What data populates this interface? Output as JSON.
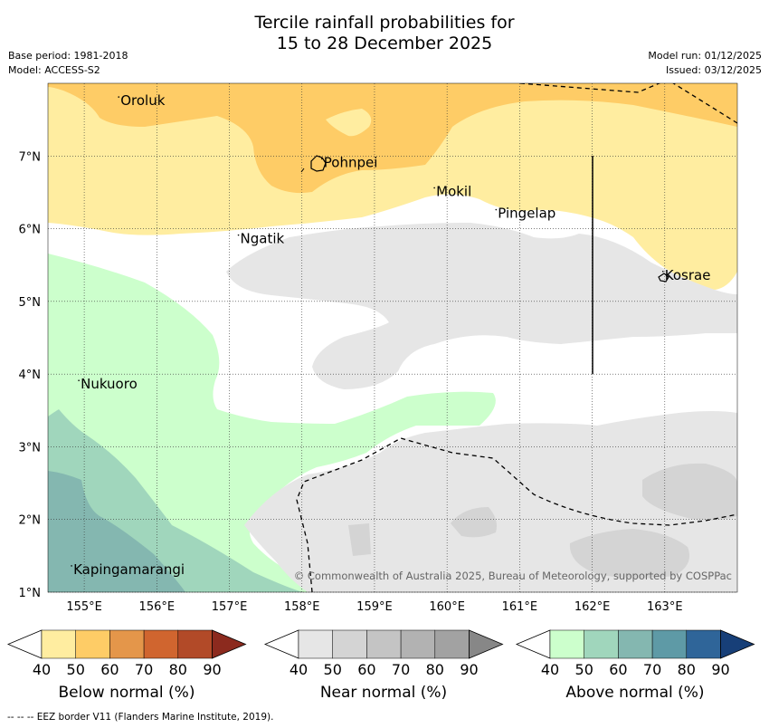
{
  "title_line1": "Tercile rainfall probabilities for",
  "title_line2": "15 to 28 December 2025",
  "base_period": "Base period: 1981-2018",
  "model": "Model: ACCESS-S2",
  "model_run": "Model run: 01/12/2025",
  "issued": "Issued: 03/12/2025",
  "map": {
    "lon_ticks": [
      "155°E",
      "156°E",
      "157°E",
      "158°E",
      "159°E",
      "160°E",
      "161°E",
      "162°E",
      "163°E"
    ],
    "lat_ticks": [
      "7°N",
      "6°N",
      "5°N",
      "4°N",
      "3°N",
      "2°N",
      "1°N"
    ],
    "places": [
      {
        "name": "Oroluk",
        "lon": 155.5,
        "lat": 7.7
      },
      {
        "name": "Pohnpei",
        "lon": 158.3,
        "lat": 6.85
      },
      {
        "name": "Mokil",
        "lon": 159.85,
        "lat": 6.45
      },
      {
        "name": "Pingelap",
        "lon": 160.7,
        "lat": 6.15
      },
      {
        "name": "Ngatik",
        "lon": 157.15,
        "lat": 5.8
      },
      {
        "name": "Kosrae",
        "lon": 163.0,
        "lat": 5.3
      },
      {
        "name": "Nukuoro",
        "lon": 154.95,
        "lat": 3.8
      },
      {
        "name": "Kapingamarangi",
        "lon": 154.85,
        "lat": 1.25
      }
    ],
    "copyright": "© Commonwealth of Australia 2025, Bureau of Meteorology, supported by COSPPac"
  },
  "colorbars": [
    {
      "label": "Below normal (%)",
      "ticks": [
        "40",
        "50",
        "60",
        "70",
        "80",
        "90"
      ],
      "colors": [
        "#ffffff",
        "#ffeda0",
        "#fecc66",
        "#e4964a",
        "#d0652f",
        "#b24a28",
        "#8c2a1e"
      ]
    },
    {
      "label": "Near normal (%)",
      "ticks": [
        "40",
        "50",
        "60",
        "70",
        "80",
        "90"
      ],
      "colors": [
        "#ffffff",
        "#e6e6e6",
        "#d4d4d4",
        "#c4c4c4",
        "#b2b2b2",
        "#a2a2a2",
        "#878787"
      ]
    },
    {
      "label": "Above normal (%)",
      "ticks": [
        "40",
        "50",
        "60",
        "70",
        "80",
        "90"
      ],
      "colors": [
        "#ffffff",
        "#ccffcc",
        "#a0d6bc",
        "#84b7b0",
        "#5e9aa6",
        "#2f6599",
        "#173f78"
      ]
    }
  ],
  "eez_note": "-- -- -- EEZ border V11 (Flanders Marine Institute, 2019)."
}
